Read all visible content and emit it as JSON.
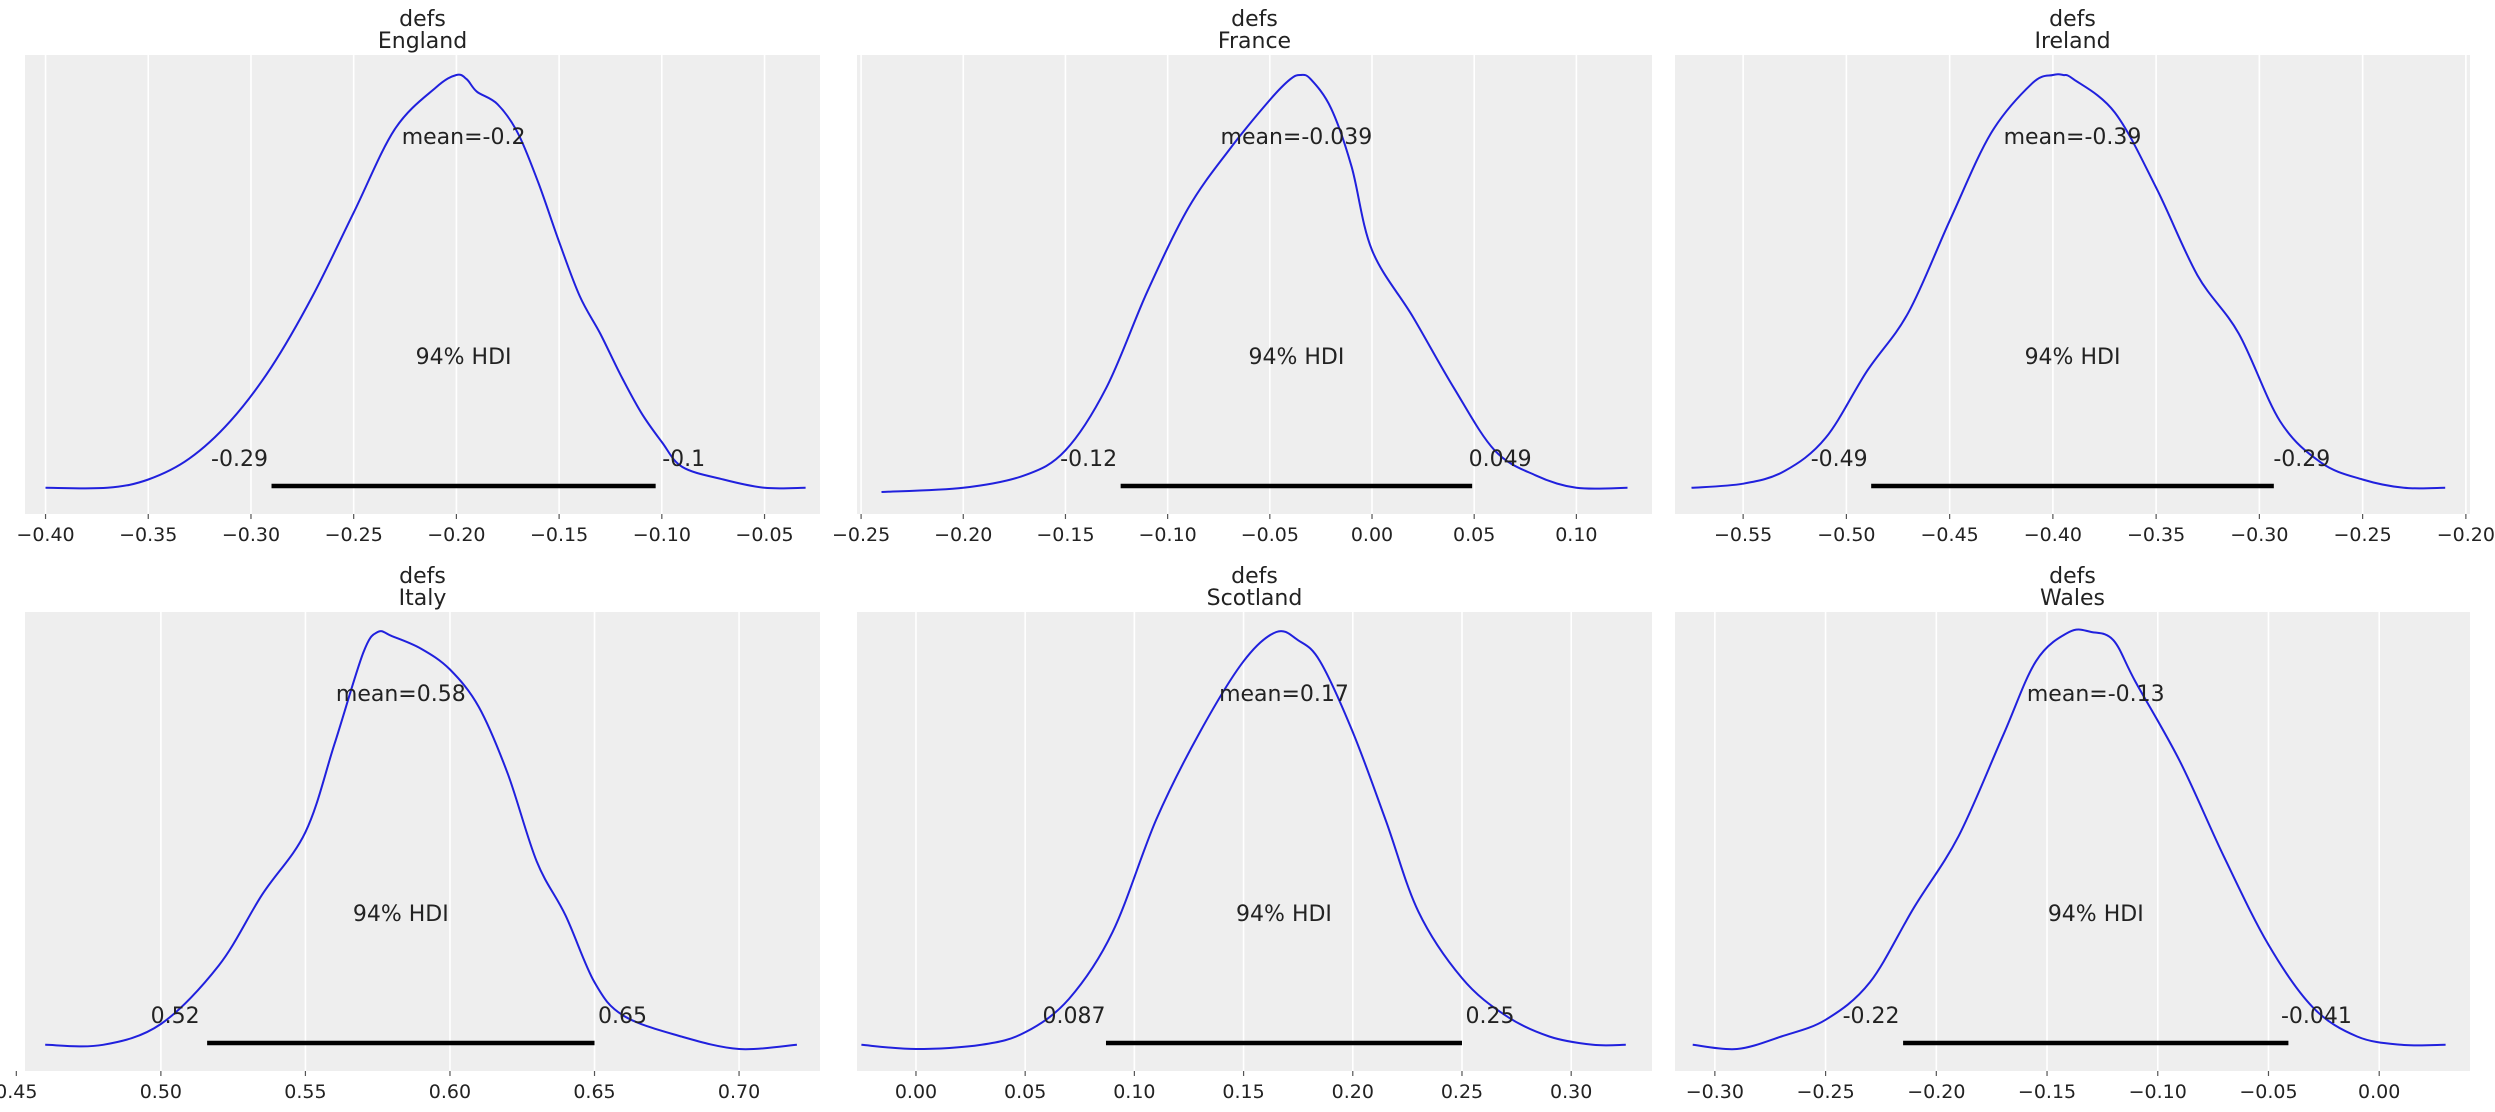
{
  "figure": {
    "background": "#ffffff",
    "axes_facecolor": "#eeeeee",
    "grid_color": "#ffffff",
    "line_color": "#2020dd",
    "hdi_color": "#000000"
  },
  "chart_data": [
    {
      "type": "line",
      "title": "defs",
      "subtitle": "England",
      "xlim": [
        -0.41,
        -0.023
      ],
      "xticks": [
        -0.4,
        -0.35,
        -0.3,
        -0.25,
        -0.2,
        -0.15,
        -0.1,
        -0.05
      ],
      "xtick_labels": [
        "−0.40",
        "−0.35",
        "−0.30",
        "−0.25",
        "−0.20",
        "−0.15",
        "−0.10",
        "−0.05"
      ],
      "grid": true,
      "mean_label": "mean=-0.2",
      "hdi_label": "94% HDI",
      "hdi": [
        -0.29,
        -0.103
      ],
      "hdi_low_label": "-0.29",
      "hdi_high_label": "-0.1",
      "density": {
        "x": [
          -0.4,
          -0.37,
          -0.35,
          -0.33,
          -0.31,
          -0.29,
          -0.27,
          -0.25,
          -0.23,
          -0.21,
          -0.2,
          -0.195,
          -0.19,
          -0.18,
          -0.17,
          -0.16,
          -0.15,
          -0.14,
          -0.13,
          -0.12,
          -0.11,
          -0.1,
          -0.09,
          -0.07,
          -0.05,
          -0.03
        ],
        "y": [
          0.01,
          0.01,
          0.03,
          0.08,
          0.17,
          0.3,
          0.47,
          0.67,
          0.87,
          0.97,
          1.0,
          0.99,
          0.96,
          0.93,
          0.86,
          0.74,
          0.6,
          0.47,
          0.38,
          0.28,
          0.19,
          0.12,
          0.06,
          0.03,
          0.01,
          0.01
        ]
      }
    },
    {
      "type": "line",
      "title": "defs",
      "subtitle": "France",
      "xlim": [
        -0.252,
        0.137
      ],
      "xticks": [
        -0.25,
        -0.2,
        -0.15,
        -0.1,
        -0.05,
        0.0,
        0.05,
        0.1
      ],
      "xtick_labels": [
        "−0.25",
        "−0.20",
        "−0.15",
        "−0.10",
        "−0.05",
        "0.00",
        "0.05",
        "0.10"
      ],
      "grid": true,
      "mean_label": "mean=-0.039",
      "hdi_label": "94% HDI",
      "hdi": [
        -0.123,
        0.049
      ],
      "hdi_low_label": "-0.12",
      "hdi_high_label": "0.049",
      "density": {
        "x": [
          -0.24,
          -0.2,
          -0.17,
          -0.15,
          -0.13,
          -0.11,
          -0.09,
          -0.07,
          -0.05,
          -0.04,
          -0.035,
          -0.03,
          -0.02,
          -0.01,
          0.0,
          0.02,
          0.04,
          0.06,
          0.08,
          0.1,
          0.125
        ],
        "y": [
          0.0,
          0.01,
          0.04,
          0.1,
          0.25,
          0.48,
          0.68,
          0.82,
          0.94,
          0.99,
          1.0,
          0.99,
          0.92,
          0.78,
          0.58,
          0.42,
          0.25,
          0.1,
          0.04,
          0.01,
          0.01
        ]
      }
    },
    {
      "type": "line",
      "title": "defs",
      "subtitle": "Ireland",
      "xlim": [
        -0.583,
        -0.198
      ],
      "xticks": [
        -0.55,
        -0.5,
        -0.45,
        -0.4,
        -0.35,
        -0.3,
        -0.25,
        -0.2
      ],
      "xtick_labels": [
        "−0.55",
        "−0.50",
        "−0.45",
        "−0.40",
        "−0.35",
        "−0.30",
        "−0.25",
        "−0.20"
      ],
      "grid": true,
      "mean_label": "mean=-0.39",
      "hdi_label": "94% HDI",
      "hdi": [
        -0.488,
        -0.293
      ],
      "hdi_low_label": "-0.49",
      "hdi_high_label": "-0.29",
      "density": {
        "x": [
          -0.575,
          -0.55,
          -0.53,
          -0.51,
          -0.49,
          -0.47,
          -0.45,
          -0.43,
          -0.41,
          -0.4,
          -0.395,
          -0.39,
          -0.37,
          -0.35,
          -0.33,
          -0.31,
          -0.29,
          -0.27,
          -0.25,
          -0.23,
          -0.21
        ],
        "y": [
          0.01,
          0.02,
          0.05,
          0.13,
          0.29,
          0.43,
          0.65,
          0.86,
          0.98,
          1.0,
          1.0,
          0.99,
          0.91,
          0.73,
          0.52,
          0.38,
          0.17,
          0.07,
          0.03,
          0.01,
          0.01
        ]
      }
    },
    {
      "type": "line",
      "title": "defs",
      "subtitle": "Italy",
      "xlim": [
        0.453,
        0.728
      ],
      "xticks": [
        0.45,
        0.5,
        0.55,
        0.6,
        0.65,
        0.7
      ],
      "xtick_labels": [
        "0.45",
        "0.50",
        "0.55",
        "0.60",
        "0.65",
        "0.70"
      ],
      "grid": true,
      "mean_label": "mean=0.58",
      "hdi_label": "94% HDI",
      "hdi": [
        0.516,
        0.65
      ],
      "hdi_low_label": "0.52",
      "hdi_high_label": "0.65",
      "density": {
        "x": [
          0.46,
          0.48,
          0.5,
          0.52,
          0.535,
          0.55,
          0.56,
          0.57,
          0.575,
          0.58,
          0.59,
          0.6,
          0.61,
          0.62,
          0.63,
          0.64,
          0.65,
          0.66,
          0.68,
          0.7,
          0.72
        ],
        "y": [
          0.01,
          0.01,
          0.06,
          0.2,
          0.37,
          0.52,
          0.73,
          0.95,
          1.0,
          0.99,
          0.96,
          0.91,
          0.82,
          0.66,
          0.45,
          0.32,
          0.16,
          0.08,
          0.03,
          0.0,
          0.01
        ]
      }
    },
    {
      "type": "line",
      "title": "defs",
      "subtitle": "Scotland",
      "xlim": [
        -0.027,
        0.337
      ],
      "xticks": [
        0.0,
        0.05,
        0.1,
        0.15,
        0.2,
        0.25,
        0.3
      ],
      "xtick_labels": [
        "0.00",
        "0.05",
        "0.10",
        "0.15",
        "0.20",
        "0.25",
        "0.30"
      ],
      "grid": true,
      "mean_label": "mean=0.17",
      "hdi_label": "94% HDI",
      "hdi": [
        0.087,
        0.25
      ],
      "hdi_low_label": "0.087",
      "hdi_high_label": "0.25",
      "density": {
        "x": [
          -0.025,
          0.0,
          0.03,
          0.05,
          0.07,
          0.09,
          0.11,
          0.13,
          0.15,
          0.165,
          0.175,
          0.185,
          0.2,
          0.215,
          0.23,
          0.25,
          0.27,
          0.29,
          0.31,
          0.325
        ],
        "y": [
          0.01,
          0.0,
          0.01,
          0.04,
          0.12,
          0.28,
          0.55,
          0.76,
          0.93,
          1.0,
          0.98,
          0.93,
          0.76,
          0.55,
          0.33,
          0.17,
          0.08,
          0.03,
          0.01,
          0.01
        ]
      }
    },
    {
      "type": "line",
      "title": "defs",
      "subtitle": "Wales",
      "xlim": [
        -0.318,
        0.041
      ],
      "xticks": [
        -0.3,
        -0.25,
        -0.2,
        -0.15,
        -0.1,
        -0.05,
        0.0
      ],
      "xtick_labels": [
        "−0.30",
        "−0.25",
        "−0.20",
        "−0.15",
        "−0.10",
        "−0.05",
        "0.00"
      ],
      "grid": true,
      "mean_label": "mean=-0.13",
      "hdi_label": "94% HDI",
      "hdi": [
        -0.215,
        -0.041
      ],
      "hdi_low_label": "-0.22",
      "hdi_high_label": "-0.041",
      "density": {
        "x": [
          -0.31,
          -0.29,
          -0.27,
          -0.25,
          -0.23,
          -0.21,
          -0.19,
          -0.17,
          -0.155,
          -0.14,
          -0.13,
          -0.12,
          -0.11,
          -0.09,
          -0.07,
          -0.05,
          -0.03,
          -0.01,
          0.01,
          0.03
        ],
        "y": [
          0.01,
          0.0,
          0.03,
          0.07,
          0.16,
          0.34,
          0.51,
          0.75,
          0.93,
          1.0,
          1.0,
          0.98,
          0.88,
          0.69,
          0.46,
          0.25,
          0.1,
          0.03,
          0.01,
          0.01
        ]
      }
    }
  ]
}
